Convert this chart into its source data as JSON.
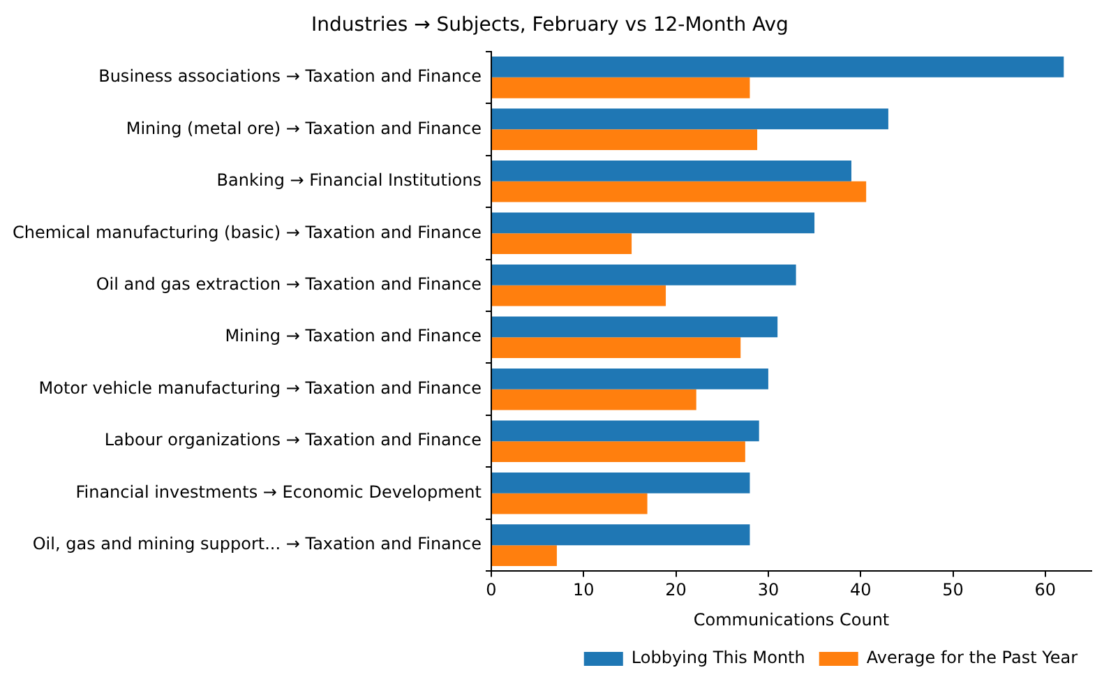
{
  "chart_data": {
    "type": "bar",
    "orientation": "horizontal",
    "title": "Industries → Subjects, February vs 12-Month Avg",
    "xlabel": "Communications Count",
    "categories": [
      "Business associations → Taxation and Finance",
      "Mining (metal ore) → Taxation and Finance",
      "Banking → Financial Institutions",
      "Chemical manufacturing (basic) → Taxation and Finance",
      "Oil and gas extraction → Taxation and Finance",
      "Mining → Taxation and Finance",
      "Motor vehicle manufacturing → Taxation and Finance",
      "Labour organizations → Taxation and Finance",
      "Financial investments → Economic Development",
      "Oil, gas and mining support... → Taxation and Finance"
    ],
    "series": [
      {
        "name": "Lobbying This Month",
        "color": "#1f77b4",
        "values": [
          62,
          43,
          39,
          35,
          33,
          31,
          30,
          29,
          28,
          28
        ]
      },
      {
        "name": "Average for the Past Year",
        "color": "#ff7f0e",
        "values": [
          28,
          28.8,
          40.6,
          15.2,
          18.9,
          27,
          22.2,
          27.5,
          16.9,
          7.1
        ]
      }
    ],
    "xlim": [
      0,
      65
    ],
    "xticks": [
      0,
      10,
      20,
      30,
      40,
      50,
      60
    ],
    "grid": false,
    "legend": "bottom"
  }
}
